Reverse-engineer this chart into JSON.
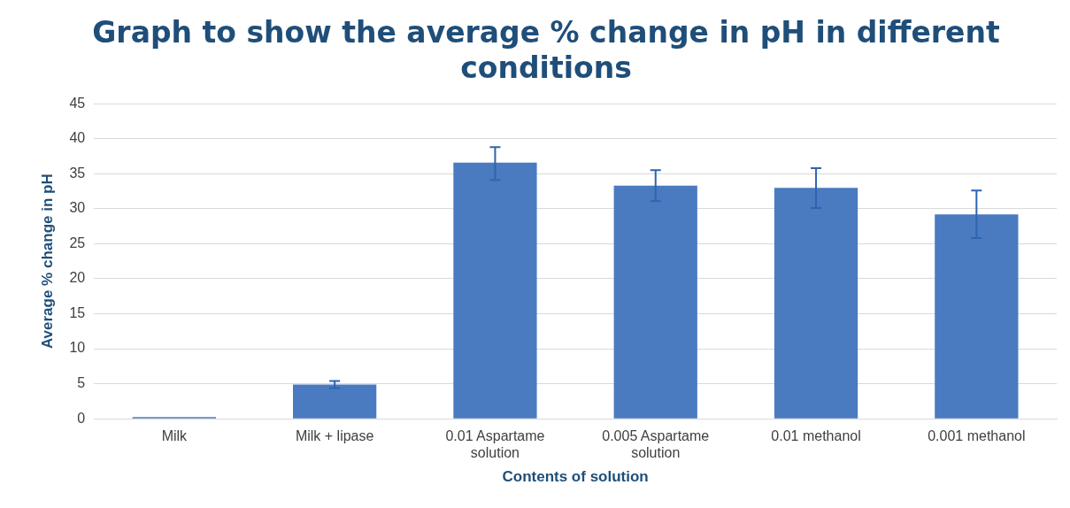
{
  "chart_data": {
    "type": "bar",
    "title": "Graph to show the average % change in pH in different conditions",
    "xlabel": "Contents of solution",
    "ylabel": "Average % change in pH",
    "categories": [
      "Milk",
      "Milk + lipase",
      "0.01 Aspartame solution",
      "0.005 Aspartame solution",
      "0.01 methanol",
      "0.001 methanol"
    ],
    "values": [
      0.1,
      4.9,
      36.6,
      33.3,
      33.0,
      29.2
    ],
    "errors": [
      null,
      [
        4.4,
        5.4
      ],
      [
        34.1,
        38.8
      ],
      [
        31.1,
        35.5
      ],
      [
        30.1,
        35.8
      ],
      [
        25.8,
        32.6
      ]
    ],
    "color": "#4a7bc0",
    "ylim": [
      0,
      45
    ],
    "yticks": [
      0,
      5,
      10,
      15,
      20,
      25,
      30,
      35,
      40,
      45
    ],
    "grid": "y",
    "legend": false
  }
}
